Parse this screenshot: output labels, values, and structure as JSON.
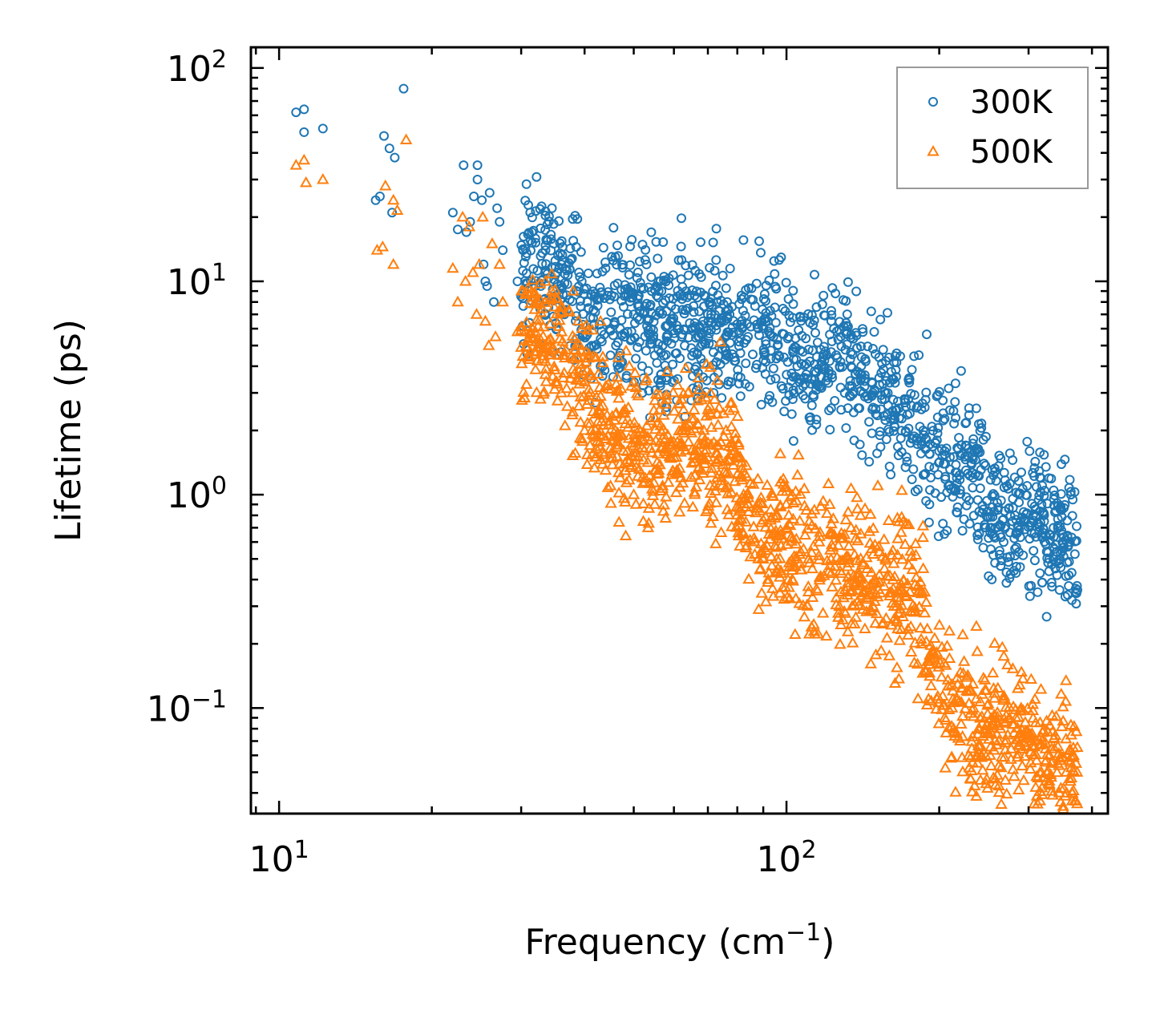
{
  "chart_data": {
    "type": "scatter",
    "xscale": "log",
    "yscale": "log",
    "xlim": [
      8.8,
      430
    ],
    "ylim": [
      0.032,
      125
    ],
    "xlabel": "Frequency (cm$^{-1}$)",
    "xlabel_parts": {
      "base": "Frequency (cm",
      "sup": "−1",
      "close": ")"
    },
    "ylabel": "Lifetime (ps)",
    "x_ticks": [
      {
        "value": 10,
        "base": "10",
        "exp": "1"
      },
      {
        "value": 100,
        "base": "10",
        "exp": "2"
      }
    ],
    "y_ticks": [
      {
        "value": 0.1,
        "base": "10",
        "exp": "−1"
      },
      {
        "value": 1,
        "base": "10",
        "exp": "0"
      },
      {
        "value": 10,
        "base": "10",
        "exp": "1"
      },
      {
        "value": 100,
        "base": "10",
        "exp": "2"
      }
    ],
    "legend_position": "top-right",
    "series": [
      {
        "name": "300K",
        "marker": "circle",
        "color": "#1f77b4",
        "points": [
          [
            10.8,
            62
          ],
          [
            11.2,
            64
          ],
          [
            11.2,
            50
          ],
          [
            12.2,
            52
          ],
          [
            15.8,
            25
          ],
          [
            16.1,
            48
          ],
          [
            16.5,
            42
          ],
          [
            16.9,
            38
          ],
          [
            16.7,
            21
          ],
          [
            17.6,
            80
          ],
          [
            15.5,
            24
          ],
          [
            22,
            21
          ],
          [
            22.5,
            17.5
          ],
          [
            23.1,
            35
          ],
          [
            23.4,
            17
          ],
          [
            23.8,
            19
          ],
          [
            24.2,
            25
          ],
          [
            24.6,
            35
          ],
          [
            24.6,
            30
          ],
          [
            25.1,
            24
          ],
          [
            25.3,
            12
          ],
          [
            25.5,
            10
          ],
          [
            25.7,
            9.5
          ],
          [
            26,
            26
          ],
          [
            26.5,
            8
          ],
          [
            26.9,
            22
          ],
          [
            27.2,
            19
          ],
          [
            27.6,
            14
          ],
          [
            29.5,
            10
          ],
          [
            30,
            8.5
          ],
          [
            31.5,
            17
          ],
          [
            32,
            8.3
          ],
          [
            32.8,
            9.5
          ],
          [
            33.5,
            14
          ],
          [
            34.5,
            22
          ],
          [
            35.3,
            11
          ],
          [
            36,
            12
          ],
          [
            36.5,
            7
          ],
          [
            37.5,
            5
          ],
          [
            38,
            15.5
          ],
          [
            38.5,
            14.5
          ],
          [
            39,
            11
          ],
          [
            39.5,
            10
          ],
          [
            40.5,
            8
          ],
          [
            41.2,
            3.5
          ],
          [
            42,
            2.7
          ],
          [
            43,
            4
          ],
          [
            44,
            11.5
          ],
          [
            45,
            4.5
          ],
          [
            46,
            13
          ],
          [
            47,
            6
          ],
          [
            48,
            5.5
          ],
          [
            49,
            9
          ],
          [
            50,
            7
          ],
          [
            51,
            8.5
          ],
          [
            52,
            3
          ],
          [
            53,
            12
          ],
          [
            54,
            6
          ],
          [
            55,
            4.5
          ],
          [
            56,
            9
          ],
          [
            57,
            5
          ],
          [
            59,
            6.5
          ],
          [
            61,
            8.5
          ],
          [
            63,
            5
          ],
          [
            65,
            6
          ],
          [
            67,
            5.5
          ],
          [
            70,
            7
          ],
          [
            73,
            8
          ],
          [
            76,
            4.5
          ],
          [
            80,
            6.3
          ],
          [
            84,
            5.5
          ],
          [
            88,
            6
          ],
          [
            92,
            6.5
          ],
          [
            96,
            5
          ],
          [
            101,
            5.5
          ],
          [
            105,
            4
          ],
          [
            110,
            3.5
          ],
          [
            116,
            3.2
          ],
          [
            120,
            4.5
          ],
          [
            124,
            6
          ],
          [
            128,
            5.5
          ],
          [
            134,
            4
          ],
          [
            140,
            3.5
          ],
          [
            148,
            3
          ],
          [
            156,
            2.8
          ],
          [
            165,
            2.5
          ],
          [
            175,
            2.4
          ],
          [
            186,
            2
          ],
          [
            198,
            1.8
          ],
          [
            205,
            1.6
          ],
          [
            210,
            1.5
          ],
          [
            222,
            1.55
          ],
          [
            232,
            1.5
          ],
          [
            245,
            1.4
          ],
          [
            258,
            0.7
          ],
          [
            268,
            0.6
          ],
          [
            282,
            0.8
          ],
          [
            298,
            1.1
          ],
          [
            310,
            0.8
          ],
          [
            322,
            0.75
          ],
          [
            336,
            0.7
          ],
          [
            350,
            0.65
          ],
          [
            362,
            0.6
          ],
          [
            372,
            0.35
          ]
        ]
      },
      {
        "name": "500K",
        "marker": "triangle",
        "color": "#ff7f0e",
        "points": [
          [
            10.8,
            35
          ],
          [
            11.2,
            37
          ],
          [
            11.3,
            29
          ],
          [
            12.2,
            30
          ],
          [
            15.6,
            14
          ],
          [
            16.0,
            14.5
          ],
          [
            16.2,
            28
          ],
          [
            16.8,
            24
          ],
          [
            17.1,
            21.5
          ],
          [
            16.8,
            12
          ],
          [
            17.8,
            46
          ],
          [
            22,
            11.5
          ],
          [
            22.5,
            8
          ],
          [
            23,
            20
          ],
          [
            23.3,
            10
          ],
          [
            23.7,
            18
          ],
          [
            24.1,
            11
          ],
          [
            24.5,
            7
          ],
          [
            24.8,
            12
          ],
          [
            25.2,
            20
          ],
          [
            25.5,
            6.5
          ],
          [
            25.9,
            5
          ],
          [
            26.3,
            15
          ],
          [
            26.7,
            5.5
          ],
          [
            27.2,
            12
          ],
          [
            27.6,
            8
          ],
          [
            29.5,
            5.8
          ],
          [
            30,
            4.9
          ],
          [
            31.3,
            5.8
          ],
          [
            32,
            4.7
          ],
          [
            32.8,
            5.3
          ],
          [
            33.5,
            10
          ],
          [
            34.5,
            9
          ],
          [
            35.3,
            3.3
          ],
          [
            36,
            3
          ],
          [
            36.5,
            4.5
          ],
          [
            37.5,
            3.5
          ],
          [
            38,
            9
          ],
          [
            38.5,
            5
          ],
          [
            39,
            2.6
          ],
          [
            40,
            2
          ],
          [
            41,
            1.7
          ],
          [
            42,
            1.5
          ],
          [
            43,
            6.5
          ],
          [
            44,
            1.3
          ],
          [
            45,
            1.1
          ],
          [
            46,
            2
          ],
          [
            47,
            1.2
          ],
          [
            48,
            2.5
          ],
          [
            49,
            4
          ],
          [
            50,
            1
          ],
          [
            51,
            1.5
          ],
          [
            52,
            1.2
          ],
          [
            53,
            3.5
          ],
          [
            54,
            1.8
          ],
          [
            55,
            0.9
          ],
          [
            56,
            1.3
          ],
          [
            57,
            1.1
          ],
          [
            58,
            2.8
          ],
          [
            60,
            1.5
          ],
          [
            62,
            1.2
          ],
          [
            64,
            3
          ],
          [
            66,
            1.6
          ],
          [
            68,
            1.3
          ],
          [
            70,
            2.5
          ],
          [
            73,
            1.2
          ],
          [
            76,
            2
          ],
          [
            80,
            1.5
          ],
          [
            84,
            1
          ],
          [
            88,
            0.5
          ],
          [
            92,
            0.4
          ],
          [
            96,
            0.8
          ],
          [
            100,
            0.7
          ],
          [
            105,
            0.5
          ],
          [
            110,
            0.3
          ],
          [
            116,
            0.6
          ],
          [
            122,
            0.55
          ],
          [
            128,
            0.35
          ],
          [
            134,
            0.7
          ],
          [
            140,
            0.4
          ],
          [
            148,
            0.3
          ],
          [
            156,
            0.45
          ],
          [
            165,
            0.3
          ],
          [
            175,
            0.35
          ],
          [
            186,
            0.45
          ],
          [
            198,
            0.11
          ],
          [
            205,
            0.09
          ],
          [
            212,
            0.1
          ],
          [
            220,
            0.07
          ],
          [
            230,
            0.12
          ],
          [
            240,
            0.08
          ],
          [
            252,
            0.06
          ],
          [
            262,
            0.07
          ],
          [
            275,
            0.09
          ],
          [
            290,
            0.1
          ],
          [
            305,
            0.07
          ],
          [
            318,
            0.05
          ],
          [
            330,
            0.06
          ],
          [
            342,
            0.055
          ],
          [
            356,
            0.05
          ],
          [
            368,
            0.06
          ],
          [
            374,
            0.05
          ]
        ]
      }
    ]
  }
}
